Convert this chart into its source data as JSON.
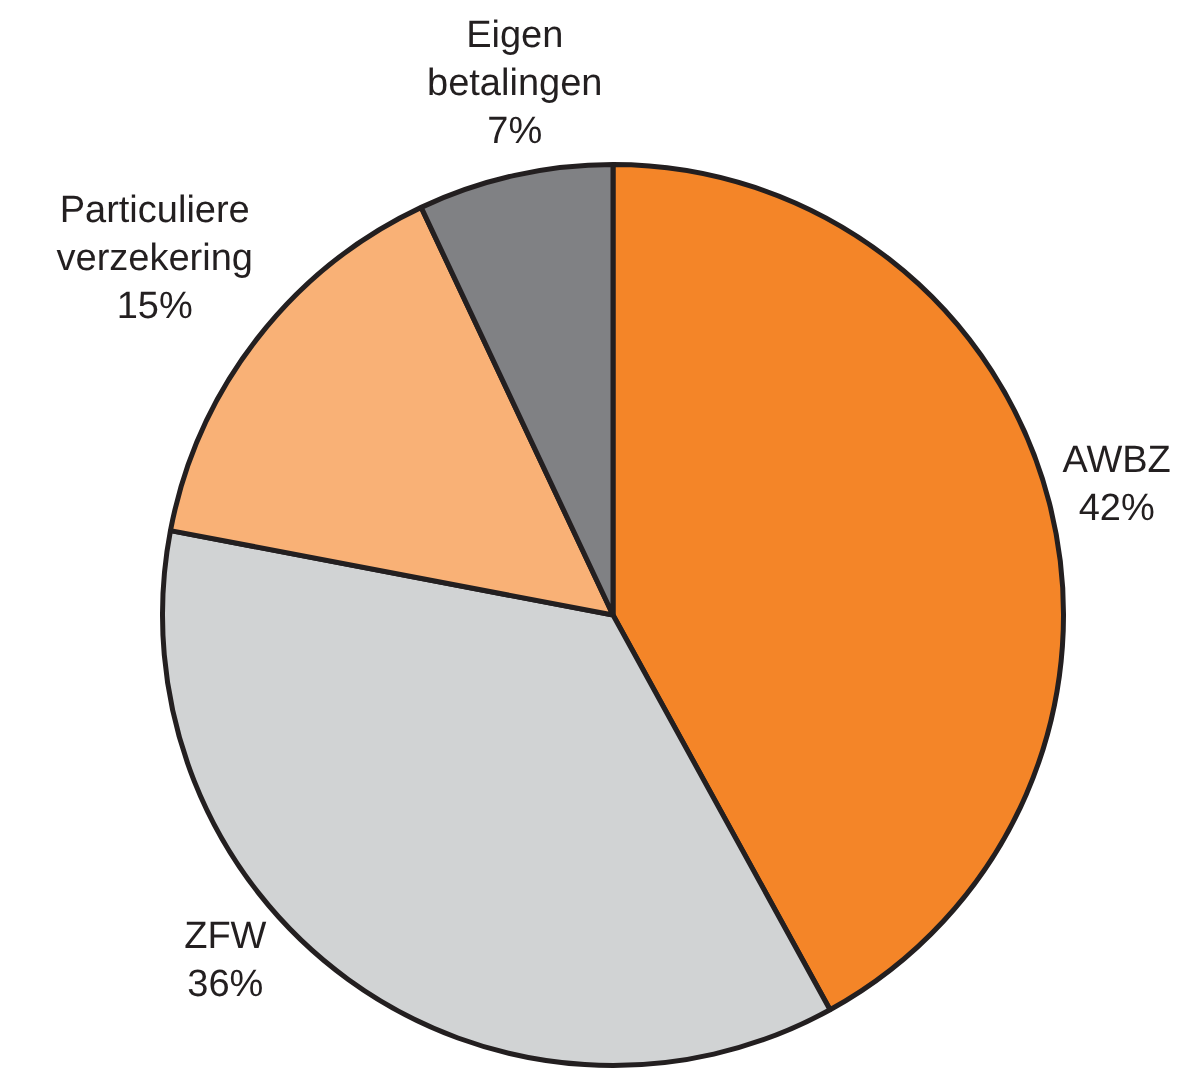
{
  "chart_data": {
    "type": "pie",
    "categories": [
      "AWBZ",
      "ZFW",
      "Particuliere verzekering",
      "Eigen betalingen"
    ],
    "values": [
      42,
      36,
      15,
      7
    ],
    "colors": [
      "#f48528",
      "#d1d3d4",
      "#f9b176",
      "#808184"
    ],
    "value_labels": [
      "42%",
      "36%",
      "15%",
      "7%"
    ],
    "legend": false
  }
}
